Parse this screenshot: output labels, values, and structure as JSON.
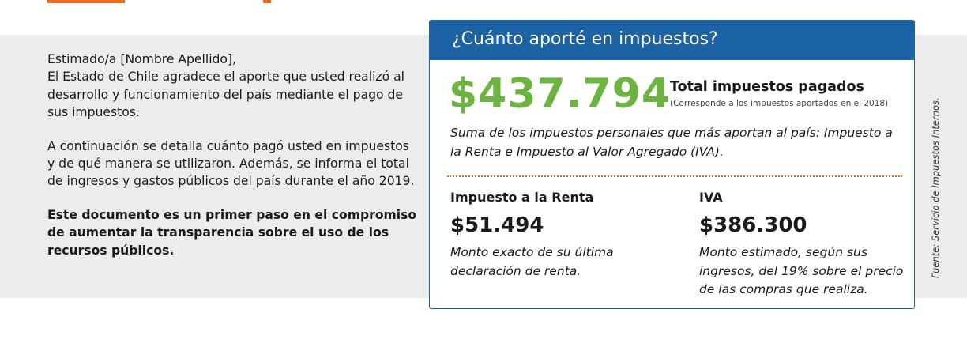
{
  "intro": {
    "greeting": "Estimado/a [Nombre Apellido],",
    "paragraph1": "El Estado de Chile agradece el aporte que usted realizó al desarrollo y funcionamiento del país mediante el pago de sus impuestos.",
    "paragraph2": "A continuación se detalla cuánto pagó usted en impuestos y de qué manera se utilizaron. Además, se informa el total de ingresos y gastos públicos del país durante el año 2019.",
    "paragraph3": "Este documento es un primer paso en el compromiso de aumentar la transparencia sobre el uso de los recursos públicos."
  },
  "card": {
    "title": "¿Cuánto aporté en impuestos?",
    "total_amount": "$437.794",
    "total_label": "Total impuestos pagados",
    "total_sub": "(Corresponde a los impuestos aportados en el 2018)",
    "description": "Suma de los impuestos personales que más aportan al país: Impuesto a la Renta e Impuesto al Valor Agregado (IVA).",
    "renta": {
      "title": "Impuesto a la Renta",
      "amount": "$51.494",
      "note": "Monto exacto de su última declaración de renta."
    },
    "iva": {
      "title": "IVA",
      "amount": "$386.300",
      "note": "Monto estimado, según sus ingresos, del 19% sobre el precio de las compras que realiza."
    }
  },
  "source": "Fuente: Servicio de Impuestos Internos.",
  "colors": {
    "brand_blue": "#1c63a6",
    "accent_green": "#6db33f",
    "accent_orange": "#ea6a1f",
    "band_gray": "#ececec"
  }
}
